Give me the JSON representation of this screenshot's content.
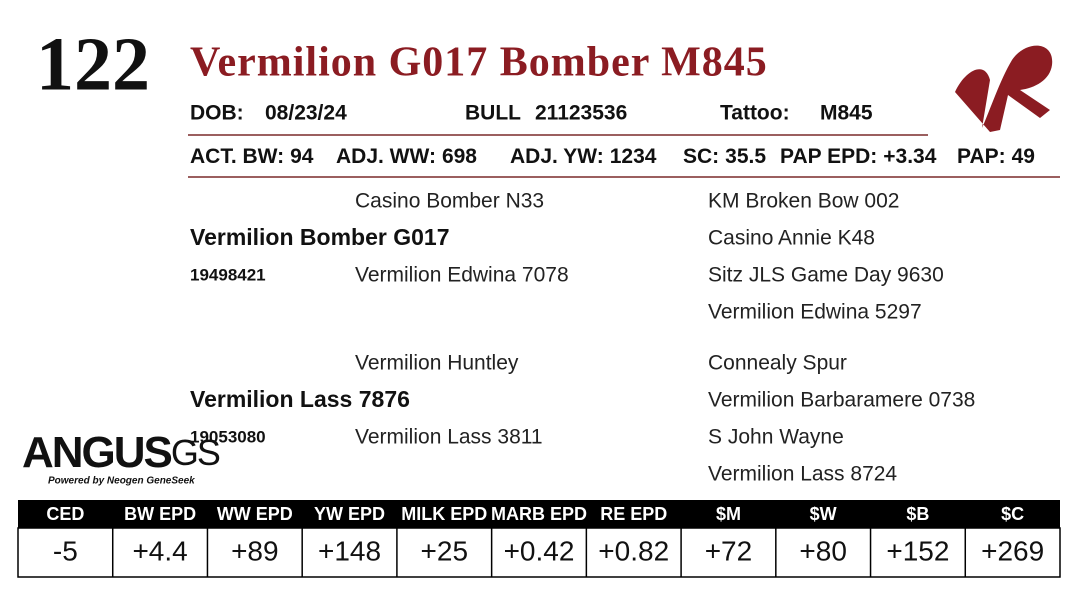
{
  "lot": "122",
  "name": "Vermilion G017 Bomber M845",
  "info": [
    {
      "label": "DOB:",
      "value": "08/23/24"
    },
    {
      "label": "BULL",
      "value": "21123536"
    },
    {
      "label": "Tattoo:",
      "value": "M845"
    }
  ],
  "stats": [
    {
      "label": "ACT. BW:",
      "value": "94"
    },
    {
      "label": "ADJ. WW:",
      "value": "698"
    },
    {
      "label": "ADJ. YW:",
      "value": "1234"
    },
    {
      "label": "SC:",
      "value": "35.5"
    },
    {
      "label": "PAP EPD:",
      "value": "+3.34"
    },
    {
      "label": "PAP:",
      "value": "49"
    }
  ],
  "pedigree": [
    {
      "name": "Vermilion Bomber G017",
      "reg": "19498421",
      "sire": "Casino Bomber N33",
      "dam": "Vermilion Edwina 7078",
      "grandparents": [
        "KM Broken Bow 002",
        "Casino Annie K48",
        "Sitz JLS Game Day 9630",
        "Vermilion Edwina 5297"
      ]
    },
    {
      "name": "Vermilion Lass 7876",
      "reg": "19053080",
      "sire": "Vermilion Huntley",
      "dam": "Vermilion Lass 3811",
      "grandparents": [
        "Connealy Spur",
        "Vermilion Barbaramere 0738",
        "S John Wayne",
        "Vermilion Lass 8724"
      ]
    }
  ],
  "logo": {
    "name": "ANGUS",
    "suffix": "GS",
    "tagline": "Powered by Neogen GeneSeek"
  },
  "epd": {
    "headers": [
      "CED",
      "BW EPD",
      "WW EPD",
      "YW EPD",
      "MILK EPD",
      "MARB EPD",
      "RE EPD",
      "$M",
      "$W",
      "$B",
      "$C"
    ],
    "values": [
      "-5",
      "+4.4",
      "+89",
      "+148",
      "+25",
      "+0.42",
      "+0.82",
      "+72",
      "+80",
      "+152",
      "+269"
    ]
  }
}
